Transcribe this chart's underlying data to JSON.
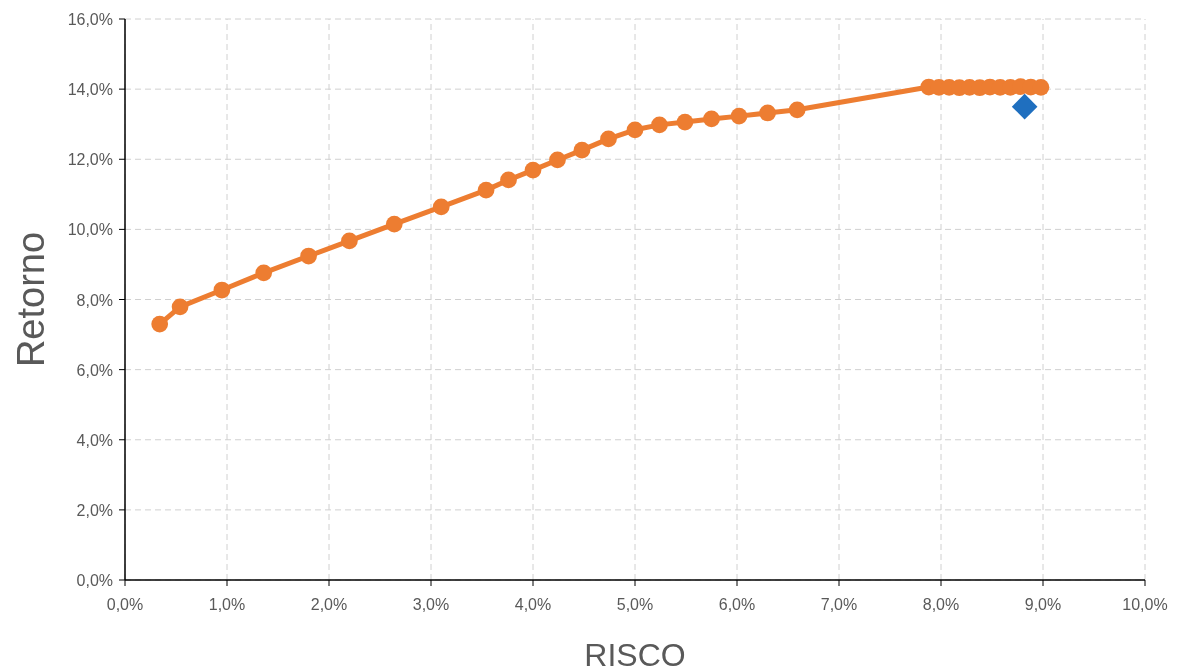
{
  "chart_data": {
    "type": "line",
    "xlabel": "RISCO",
    "ylabel": "Retorno",
    "xlim": [
      0,
      10
    ],
    "ylim": [
      0,
      16
    ],
    "xticks": [
      {
        "value": 0,
        "label": "0,0%"
      },
      {
        "value": 1,
        "label": "1,0%"
      },
      {
        "value": 2,
        "label": "2,0%"
      },
      {
        "value": 3,
        "label": "3,0%"
      },
      {
        "value": 4,
        "label": "4,0%"
      },
      {
        "value": 5,
        "label": "5,0%"
      },
      {
        "value": 6,
        "label": "6,0%"
      },
      {
        "value": 7,
        "label": "7,0%"
      },
      {
        "value": 8,
        "label": "8,0%"
      },
      {
        "value": 9,
        "label": "9,0%"
      },
      {
        "value": 10,
        "label": "10,0%"
      }
    ],
    "yticks": [
      {
        "value": 0,
        "label": "0,0%"
      },
      {
        "value": 2,
        "label": "2,0%"
      },
      {
        "value": 4,
        "label": "4,0%"
      },
      {
        "value": 6,
        "label": "6,0%"
      },
      {
        "value": 8,
        "label": "8,0%"
      },
      {
        "value": 10,
        "label": "10,0%"
      },
      {
        "value": 12,
        "label": "12,0%"
      },
      {
        "value": 14,
        "label": "14,0%"
      },
      {
        "value": 16,
        "label": "16,0%"
      }
    ],
    "grid": true,
    "series": [
      {
        "color": "#ed7d31",
        "marker": "circle",
        "line_style": "solid",
        "x": [
          0.34,
          0.54,
          0.95,
          1.36,
          1.8,
          2.2,
          2.64,
          3.1,
          3.54,
          3.76,
          4.0,
          4.24,
          4.48,
          4.74,
          5.0,
          5.24,
          5.49,
          5.75,
          6.02,
          6.3,
          6.59,
          7.88,
          7.98,
          8.08,
          8.18,
          8.28,
          8.38,
          8.48,
          8.58,
          8.68,
          8.78,
          8.88,
          8.98
        ],
        "values": [
          7.3,
          7.79,
          8.27,
          8.76,
          9.24,
          9.67,
          10.15,
          10.64,
          11.12,
          11.41,
          11.69,
          11.98,
          12.26,
          12.58,
          12.84,
          12.98,
          13.06,
          13.15,
          13.23,
          13.32,
          13.41,
          14.06,
          14.05,
          14.05,
          14.04,
          14.05,
          14.04,
          14.06,
          14.05,
          14.05,
          14.07,
          14.06,
          14.05
        ]
      },
      {
        "type": "scatter",
        "color": "#1f6fbf",
        "marker": "diamond",
        "x": [
          8.82
        ],
        "values": [
          13.5
        ]
      }
    ]
  }
}
